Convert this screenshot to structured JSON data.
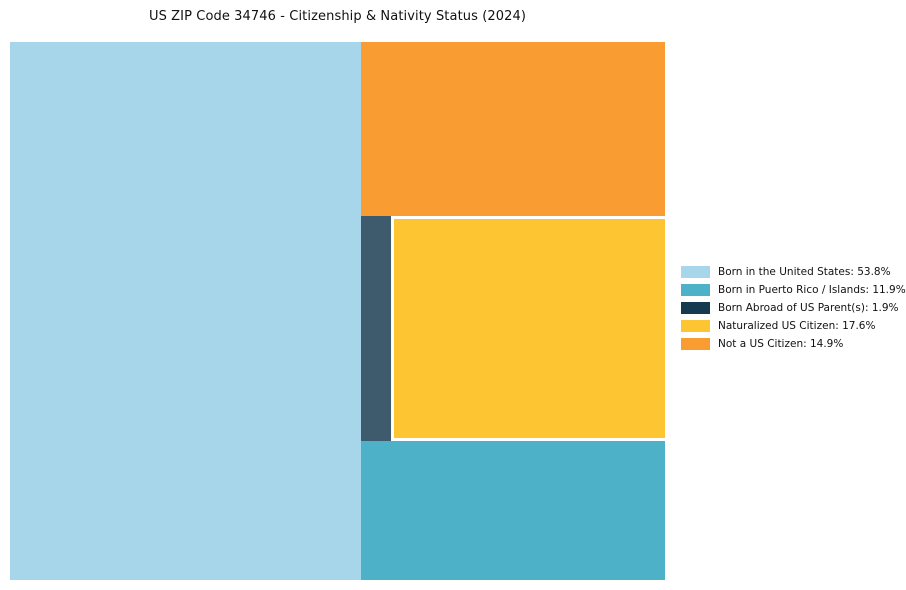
{
  "page": {
    "background": "#ffffff"
  },
  "chart_data": {
    "type": "treemap",
    "title": "US ZIP Code 34746 - Citizenship & Nativity Status (2024)",
    "unit": "%",
    "legend_position": "right",
    "categories": [
      "Born in the United States",
      "Born in Puerto Rico / Islands",
      "Born Abroad of US Parent(s)",
      "Naturalized US Citizen",
      "Not a US Citizen"
    ],
    "values": [
      53.8,
      11.9,
      1.9,
      17.6,
      14.9
    ],
    "series": [
      {
        "category": "Born in the United States",
        "value": 53.8,
        "label": "Born in the United States: 53.8%",
        "color": "#a7d5e9"
      },
      {
        "category": "Born in Puerto Rico / Islands",
        "value": 11.9,
        "label": "Born in Puerto Rico / Islands: 11.9%",
        "color": "#4db1c7"
      },
      {
        "category": "Born Abroad of US Parent(s)",
        "value": 1.9,
        "label": "Born Abroad of US Parent(s): 1.9%",
        "color": "#3e5b6d",
        "legend_color": "#15394e"
      },
      {
        "category": "Naturalized US Citizen",
        "value": 17.6,
        "label": "Naturalized US Citizen: 17.6%",
        "color": "#fec533"
      },
      {
        "category": "Not a US Citizen",
        "value": 14.9,
        "label": "Not a US Citizen: 14.9%",
        "color": "#f99d33"
      }
    ],
    "tiles": [
      {
        "category": "Born in the United States",
        "x": 0,
        "y": 0,
        "w": 53.59,
        "h": 100
      },
      {
        "category": "Not a US Citizen",
        "x": 53.59,
        "y": 0,
        "w": 46.41,
        "h": 32.25
      },
      {
        "category": "Born Abroad of US Parent(s)",
        "x": 53.59,
        "y": 32.25,
        "w": 4.52,
        "h": 42.0
      },
      {
        "category": "Naturalized US Citizen",
        "x": 58.65,
        "y": 32.9,
        "w": 41.35,
        "h": 40.75
      },
      {
        "category": "Born in Puerto Rico / Islands",
        "x": 53.59,
        "y": 74.25,
        "w": 46.41,
        "h": 25.75
      }
    ]
  }
}
